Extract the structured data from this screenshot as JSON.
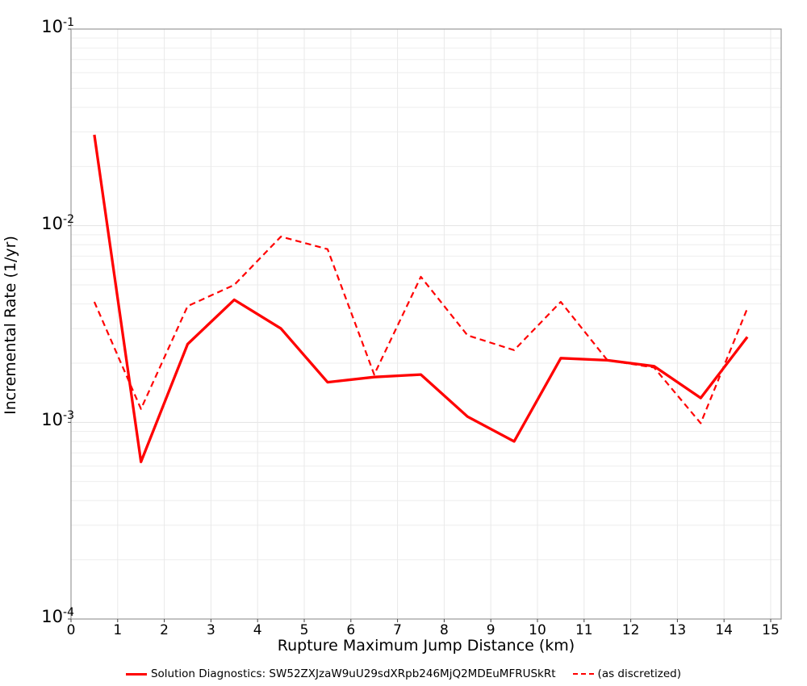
{
  "chart_data": {
    "type": "line",
    "title": "",
    "xlabel": "Rupture Maximum Jump Distance (km)",
    "ylabel": "Incremental Rate (1/yr)",
    "xlim": [
      0,
      15
    ],
    "ylim": [
      0.0001,
      0.1
    ],
    "yscale": "log",
    "grid": true,
    "legend_position": "bottom",
    "x_ticks": [
      0,
      1,
      2,
      3,
      4,
      5,
      6,
      7,
      8,
      9,
      10,
      11,
      12,
      13,
      14,
      15
    ],
    "y_tick_exponents": [
      -1,
      -2,
      -3,
      -4
    ],
    "y_tick_base": "10",
    "x": [
      0.5,
      1.5,
      2.5,
      3.5,
      4.5,
      5.5,
      6.5,
      7.5,
      8.5,
      9.5,
      10.5,
      11.5,
      12.5,
      13.5,
      14.5
    ],
    "series": [
      {
        "name": "Solution Diagnostics: SW52ZXJzaW9uU29sdXRpb246MjQ2MDEuMFRUSkRt",
        "style": "solid",
        "color": "#ff0000",
        "values": [
          0.029,
          0.00063,
          0.0025,
          0.0042,
          0.003,
          0.0016,
          0.0017,
          0.00175,
          0.00107,
          0.0008,
          0.00212,
          0.00207,
          0.00193,
          0.00133,
          0.00272
        ]
      },
      {
        "name": "(as discretized)",
        "style": "dashed",
        "color": "#ff0000",
        "values": [
          0.0041,
          0.00117,
          0.0039,
          0.005,
          0.0088,
          0.0076,
          0.00175,
          0.0055,
          0.00277,
          0.00233,
          0.0041,
          0.00207,
          0.0019,
          0.00099,
          0.0038
        ]
      }
    ],
    "colors": {
      "line": "#ff0000",
      "frame": "#9a9a9a",
      "grid_major": "#e2e2e2",
      "grid_minor": "#eeeeee",
      "tick": "#444444"
    }
  }
}
